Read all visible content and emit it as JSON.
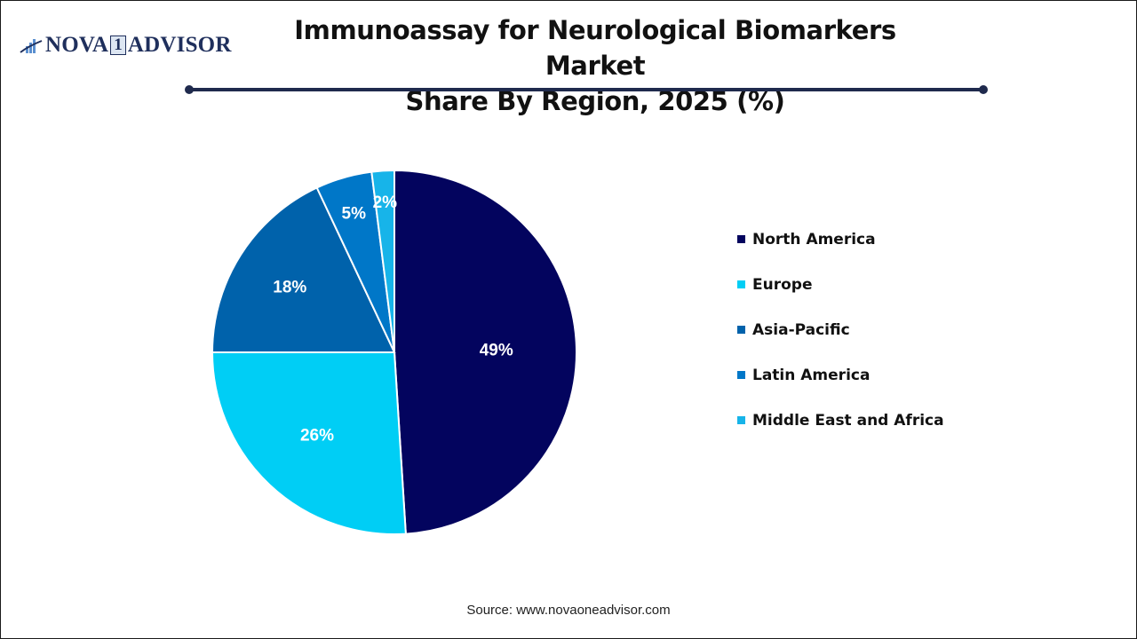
{
  "brand": {
    "logo_prefix": "NOVA",
    "logo_number": "1",
    "logo_suffix": "ADVISOR"
  },
  "title": {
    "line1": "Immunoassay for Neurological Biomarkers Market",
    "line2": "Share By Region, 2025 (%)"
  },
  "source": "Source: www.novaoneadvisor.com",
  "colors": {
    "divider": "#1f2a4d",
    "north_america": "#03045e",
    "europe": "#00cef5",
    "asia_pacific": "#0062ab",
    "latin_america": "#0077c8",
    "middle_east_africa": "#17b4e9"
  },
  "chart_data": {
    "type": "pie",
    "title": "Immunoassay for Neurological Biomarkers Market Share By Region, 2025 (%)",
    "categories": [
      "North America",
      "Europe",
      "Asia-Pacific",
      "Latin America",
      "Middle East and Africa"
    ],
    "values": [
      49,
      26,
      18,
      5,
      2
    ],
    "labels": [
      "49%",
      "26%",
      "18%",
      "5%",
      "2%"
    ],
    "colors": [
      "#03045e",
      "#00cef5",
      "#0062ab",
      "#0077c8",
      "#17b4e9"
    ],
    "start_angle": "12 o'clock, clockwise",
    "legend_position": "right",
    "unit": "%"
  },
  "legend": {
    "items": [
      {
        "label": "North America",
        "color": "#03045e"
      },
      {
        "label": "Europe",
        "color": "#00cef5"
      },
      {
        "label": "Asia-Pacific",
        "color": "#0062ab"
      },
      {
        "label": "Latin America",
        "color": "#0077c8"
      },
      {
        "label": "Middle East and Africa",
        "color": "#17b4e9"
      }
    ]
  }
}
